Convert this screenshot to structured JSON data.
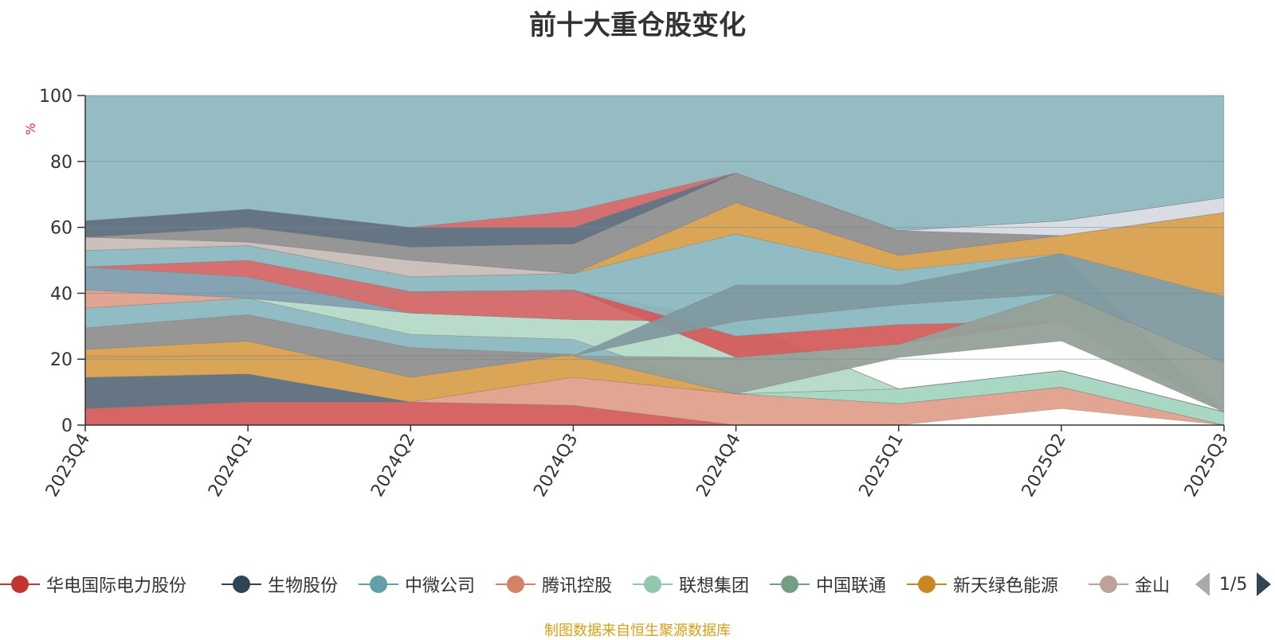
{
  "chart_data": {
    "type": "area",
    "title": "前十大重仓股变化",
    "xlabel": "",
    "ylabel": "%",
    "ylim": [
      0,
      100
    ],
    "yticks": [
      "0",
      "20",
      "40",
      "60",
      "80",
      "100"
    ],
    "categories": [
      "2023Q4",
      "2024Q1",
      "2024Q2",
      "2024Q3",
      "2024Q4",
      "2025Q1",
      "2025Q2",
      "2025Q3"
    ],
    "stacked": true,
    "grid": true,
    "legend_position": "bottom",
    "bands": [
      {
        "color": "#d45d5d",
        "values": [
          0,
          0,
          0,
          0,
          0,
          0,
          0,
          0
        ],
        "tops": [
          5,
          7,
          7,
          6,
          0,
          0,
          0,
          0
        ]
      },
      {
        "color": "#e0a08c",
        "bottoms": [
          5,
          7,
          7,
          6,
          0,
          0,
          5,
          0
        ],
        "tops": [
          5,
          7,
          7,
          14.5,
          9.5,
          6.5,
          11.5,
          0
        ]
      },
      {
        "color": "#5e6e7c",
        "bottoms": [
          5,
          7,
          7,
          14.5,
          9.5,
          6.5,
          11.5,
          0
        ],
        "tops": [
          14.5,
          15.5,
          7,
          14.5,
          9.5,
          6.5,
          11.5,
          0
        ]
      },
      {
        "color": "#d8a04d",
        "bottoms": [
          14.5,
          15.5,
          7,
          14.5,
          9.5,
          6.5,
          11.5,
          0
        ],
        "tops": [
          23,
          25.5,
          14.5,
          21.5,
          9.5,
          6.5,
          11.5,
          0
        ]
      },
      {
        "color": "#a3d6c0",
        "bottoms": [
          23,
          25.5,
          14.5,
          21.5,
          9.5,
          6.5,
          11.5,
          0
        ],
        "tops": [
          23,
          25.5,
          14.5,
          21.5,
          9.5,
          11,
          16.5,
          4
        ]
      },
      {
        "color": "#909090",
        "bottoms": [
          23,
          25.5,
          14.5,
          21.5,
          9.5,
          11,
          16.5,
          4
        ],
        "tops": [
          29.5,
          33.5,
          23.5,
          21.5,
          9.5,
          11,
          16.5,
          4
        ]
      },
      {
        "color": "#8bb8c0",
        "bottoms": [
          29.5,
          33.5,
          23.5,
          21.5,
          9.5,
          11,
          16.5,
          4
        ],
        "tops": [
          35.5,
          38.5,
          27.5,
          26,
          9.5,
          11,
          16.5,
          4
        ]
      },
      {
        "color": "#b5d9c7",
        "bottoms": [
          35.5,
          38.5,
          27.5,
          26,
          9.5,
          11,
          16.5,
          4
        ],
        "tops": [
          35.5,
          38.5,
          34,
          32,
          31.5,
          11,
          16.5,
          4
        ]
      },
      {
        "color": "#e0a08c",
        "bottoms": [
          35.5,
          38.5,
          34,
          32,
          31.5,
          11,
          16.5,
          4
        ],
        "tops": [
          41,
          38.5,
          34,
          32,
          31.5,
          11,
          16.5,
          4
        ]
      },
      {
        "color": "#809eb0",
        "bottoms": [
          41,
          38.5,
          34,
          32,
          31.5,
          11,
          16.5,
          4
        ],
        "tops": [
          48,
          45,
          34,
          32,
          31.5,
          11,
          16.5,
          4
        ]
      },
      {
        "color": "#d46868",
        "bottoms": [
          48,
          45,
          34,
          32,
          31.5,
          11,
          16.5,
          4
        ],
        "tops": [
          48,
          50,
          40.5,
          41,
          31.5,
          11,
          16.5,
          4
        ]
      },
      {
        "color": "#d45d5d",
        "bottoms": [
          48,
          50,
          40.5,
          41,
          20.5,
          24.5,
          31.5,
          4
        ],
        "tops": [
          48,
          50,
          40.5,
          41,
          27,
          30.5,
          31.5,
          4
        ]
      },
      {
        "color": "#8bb8c0",
        "bottoms": [
          48,
          50,
          40.5,
          41,
          27,
          30.5,
          31.5,
          4
        ],
        "tops": [
          53,
          54.5,
          45,
          46,
          58,
          47,
          52,
          4
        ]
      },
      {
        "color": "#95a098",
        "bottoms": [
          20.5,
          21,
          21,
          21,
          9.5,
          20.5,
          25.5,
          4
        ],
        "tops": [
          20.5,
          21,
          21,
          21,
          20.5,
          24.5,
          40,
          19
        ]
      },
      {
        "color": "#809aa0",
        "bottoms": [
          21,
          21,
          21,
          21,
          31.5,
          36.5,
          40,
          19
        ],
        "tops": [
          21,
          21,
          21,
          21,
          42.5,
          42.5,
          52,
          39
        ]
      },
      {
        "color": "#d8a04d",
        "bottoms": [
          53,
          54.5,
          45,
          46,
          58,
          47,
          52,
          39
        ],
        "tops": [
          53,
          54.5,
          45,
          46,
          67.5,
          51.5,
          57.5,
          64.5
        ]
      },
      {
        "color": "#c9bdb8",
        "bottoms": [
          53,
          54.5,
          45,
          46,
          67.5,
          51.5,
          57.5,
          64.5
        ],
        "tops": [
          57,
          55.5,
          50,
          46,
          67.5,
          51.5,
          57.5,
          64.5
        ]
      },
      {
        "color": "#909090",
        "bottoms": [
          57,
          55.5,
          50,
          46,
          67.5,
          51.5,
          57.5,
          64.5
        ],
        "tops": [
          57,
          60,
          54,
          55,
          76.5,
          59,
          57.5,
          64.5
        ]
      },
      {
        "color": "#d7dbe2",
        "bottoms": [
          57,
          60,
          54,
          55,
          76.5,
          59,
          57.5,
          64.5
        ],
        "tops": [
          57,
          60,
          54,
          55,
          76.5,
          59,
          62,
          69
        ]
      },
      {
        "color": "#5e6e7c",
        "bottoms": [
          57,
          60,
          54,
          55,
          76.5,
          59,
          62,
          69
        ],
        "tops": [
          62,
          65.5,
          60,
          60,
          76.5,
          59,
          62,
          69
        ]
      },
      {
        "color": "#d46868",
        "bottoms": [
          62,
          65.5,
          60,
          60,
          76.5,
          59,
          62,
          69
        ],
        "tops": [
          62,
          65.5,
          60,
          65,
          76.5,
          59,
          62,
          69
        ]
      },
      {
        "color": "#8fb8bf",
        "bottoms": [
          62,
          65.5,
          60,
          65,
          76.5,
          59,
          62,
          69
        ],
        "tops": [
          100,
          100,
          100,
          100,
          100,
          100,
          100,
          100
        ]
      }
    ],
    "series_legend": [
      {
        "name": "华电国际电力股份",
        "color": "#c23531"
      },
      {
        "name": "生物股份",
        "color": "#2f4554"
      },
      {
        "name": "中微公司",
        "color": "#61a0a8"
      },
      {
        "name": "腾讯控股",
        "color": "#d48265"
      },
      {
        "name": "联想集团",
        "color": "#91c7ae"
      },
      {
        "name": "中国联通",
        "color": "#749f83"
      },
      {
        "name": "新天绿色能源",
        "color": "#ca8622"
      },
      {
        "name": "金山",
        "color": "#bda29a"
      }
    ]
  },
  "legend_pager": {
    "text": "1/5"
  },
  "footer": {
    "source": "制图数据来自恒生聚源数据库"
  }
}
